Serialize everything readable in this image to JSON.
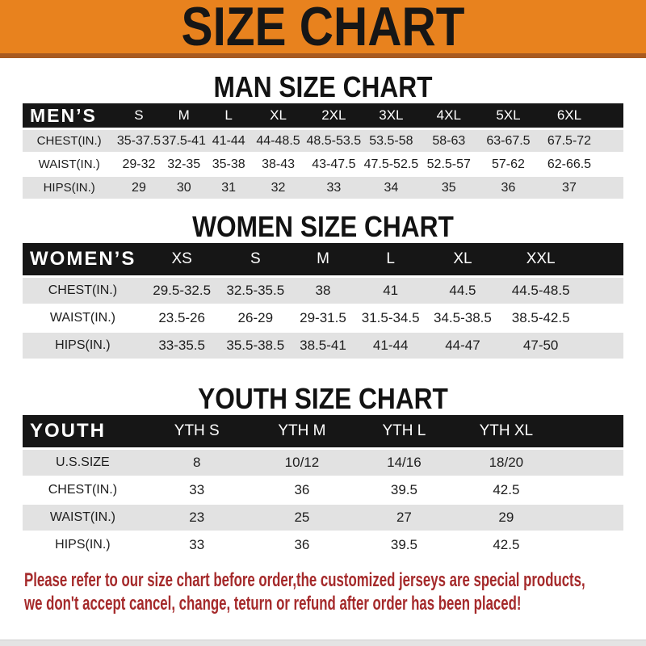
{
  "banner": {
    "title": "SIZE CHART"
  },
  "sections": {
    "men": {
      "title": "MAN SIZE CHART",
      "table": {
        "header_label": "MEN’S",
        "columns": [
          "S",
          "M",
          "L",
          "XL",
          "2XL",
          "3XL",
          "4XL",
          "5XL",
          "6XL"
        ],
        "rows": [
          {
            "label": "CHEST(IN.)",
            "values": [
              "35-37.5",
              "37.5-41",
              "41-44",
              "44-48.5",
              "48.5-53.5",
              "53.5-58",
              "58-63",
              "63-67.5",
              "67.5-72"
            ]
          },
          {
            "label": "WAIST(IN.)",
            "values": [
              "29-32",
              "32-35",
              "35-38",
              "38-43",
              "43-47.5",
              "47.5-52.5",
              "52.5-57",
              "57-62",
              "62-66.5"
            ]
          },
          {
            "label": "HIPS(IN.)",
            "values": [
              "29",
              "30",
              "31",
              "32",
              "33",
              "34",
              "35",
              "36",
              "37"
            ]
          }
        ]
      }
    },
    "women": {
      "title": "WOMEN SIZE CHART",
      "table": {
        "header_label": "WOMEN’S",
        "columns": [
          "XS",
          "S",
          "M",
          "L",
          "XL",
          "XXL"
        ],
        "rows": [
          {
            "label": "CHEST(IN.)",
            "values": [
              "29.5-32.5",
              "32.5-35.5",
              "38",
              "41",
              "44.5",
              "44.5-48.5"
            ]
          },
          {
            "label": "WAIST(IN.)",
            "values": [
              "23.5-26",
              "26-29",
              "29-31.5",
              "31.5-34.5",
              "34.5-38.5",
              "38.5-42.5"
            ]
          },
          {
            "label": "HIPS(IN.)",
            "values": [
              "33-35.5",
              "35.5-38.5",
              "38.5-41",
              "41-44",
              "44-47",
              "47-50"
            ]
          }
        ]
      }
    },
    "youth": {
      "title": "YOUTH SIZE CHART",
      "table": {
        "header_label": "YOUTH",
        "columns": [
          "YTH S",
          "YTH M",
          "YTH L",
          "YTH XL"
        ],
        "rows": [
          {
            "label": "U.S.SIZE",
            "values": [
              "8",
              "10/12",
              "14/16",
              "18/20"
            ]
          },
          {
            "label": "CHEST(IN.)",
            "values": [
              "33",
              "36",
              "39.5",
              "42.5"
            ]
          },
          {
            "label": "WAIST(IN.)",
            "values": [
              "23",
              "25",
              "27",
              "29"
            ]
          },
          {
            "label": "HIPS(IN.)",
            "values": [
              "33",
              "36",
              "39.5",
              "42.5"
            ]
          }
        ]
      }
    }
  },
  "note": {
    "line1": "Please refer to our size chart before order,the customized jerseys are special products,",
    "line2": "we don't accept cancel, change, teturn or refund after order has been placed!"
  },
  "colors": {
    "banner_orange": "#E8821E",
    "banner_edge": "#A85A20",
    "header_black": "#161616",
    "row_gray": "#E2E2E2",
    "note_red": "#A52A2B"
  }
}
